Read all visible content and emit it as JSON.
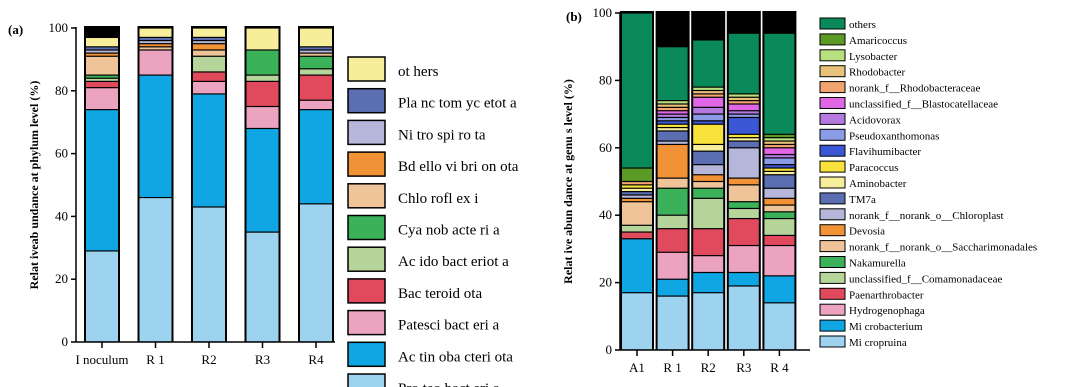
{
  "chart_data": [
    {
      "type": "bar",
      "stacked": true,
      "panel_label": "(a)",
      "ylabel": "Relat iveab undance at phylum level  (%)",
      "ylim": [
        0,
        100
      ],
      "yticks": [
        0,
        20,
        40,
        60,
        80,
        100
      ],
      "categories": [
        "I noculum",
        "R 1",
        "R2",
        "R3",
        "R4"
      ],
      "grid": false,
      "legend_position": "right",
      "series": [
        {
          "name": "Pro teo bact eri a",
          "color": "#9dd3ef",
          "values": [
            29,
            46,
            43,
            35,
            44
          ]
        },
        {
          "name": "Ac tin oba cteri ota",
          "color": "#0fa6e3",
          "values": [
            45,
            39,
            36,
            33,
            30
          ]
        },
        {
          "name": "Patesci bact eri a",
          "color": "#eba3c0",
          "values": [
            7,
            8,
            4,
            7,
            3
          ]
        },
        {
          "name": "Bac teroid ota",
          "color": "#e14a5c",
          "values": [
            2,
            0,
            3,
            8,
            8
          ]
        },
        {
          "name": "Ac ido bact eriot a",
          "color": "#b6d59b",
          "values": [
            1,
            0,
            5,
            2,
            2
          ]
        },
        {
          "name": "Cya nob acte ri a",
          "color": "#3bb15a",
          "values": [
            1,
            0,
            0,
            8,
            4
          ]
        },
        {
          "name": "Chlo rofl ex i",
          "color": "#efc498",
          "values": [
            6,
            1,
            2,
            0,
            1
          ]
        },
        {
          "name": "Bd ello vi bri on ota",
          "color": "#f29236",
          "values": [
            1,
            1,
            2,
            0,
            0
          ]
        },
        {
          "name": "Ni tro spi ro ta",
          "color": "#b5b6d9",
          "values": [
            1,
            1,
            1,
            0,
            1
          ]
        },
        {
          "name": "Pla nc tom yc etot a",
          "color": "#5b6eb2",
          "values": [
            1,
            1,
            1,
            0,
            1
          ]
        },
        {
          "name": "ot hers",
          "color": "#f7ee9c",
          "values": [
            3,
            3,
            3,
            7,
            6
          ]
        }
      ]
    },
    {
      "type": "bar",
      "stacked": true,
      "panel_label": "(b)",
      "ylabel": "Relat ive abun dance  at genu s level (%)",
      "ylim": [
        0,
        100
      ],
      "yticks": [
        0,
        20,
        40,
        60,
        80,
        100
      ],
      "categories": [
        "A1",
        "R 1",
        "R2",
        "R3",
        "R 4"
      ],
      "grid": false,
      "legend_position": "right",
      "series": [
        {
          "name": "Mi cropruina",
          "color": "#9dd3ef",
          "values": [
            17,
            16,
            17,
            19,
            14
          ]
        },
        {
          "name": "Mi crobacterium",
          "color": "#0fa6e3",
          "values": [
            16,
            5,
            6,
            4,
            8
          ]
        },
        {
          "name": "Hydrogenophaga",
          "color": "#eba3c0",
          "values": [
            0,
            8,
            5,
            8,
            9
          ]
        },
        {
          "name": "Paenarthrobacter",
          "color": "#e14a5c",
          "values": [
            2,
            7,
            8,
            8,
            3
          ]
        },
        {
          "name": "unclassified_f__Comamonadaceae",
          "color": "#b6d59b",
          "values": [
            2,
            4,
            9,
            3,
            5
          ]
        },
        {
          "name": "Nakamurella",
          "color": "#3bb15a",
          "values": [
            0,
            8,
            3,
            2,
            2
          ]
        },
        {
          "name": "norank_f__norank_o__Saccharimonadales",
          "color": "#efc498",
          "values": [
            7,
            3,
            2,
            5,
            2
          ]
        },
        {
          "name": "Devosia",
          "color": "#f29236",
          "values": [
            1,
            10,
            2,
            2,
            2
          ]
        },
        {
          "name": "norank_f__norank_o__Chloroplast",
          "color": "#b5b6d9",
          "values": [
            1,
            1,
            3,
            9,
            3
          ]
        },
        {
          "name": "TM7a",
          "color": "#5b6eb2",
          "values": [
            1,
            3,
            4,
            2,
            4
          ]
        },
        {
          "name": "Aminobacter",
          "color": "#f7ee9c",
          "values": [
            1,
            1,
            2,
            1,
            1
          ]
        },
        {
          "name": "Paracoccus",
          "color": "#f9e23c",
          "values": [
            1,
            1,
            6,
            1,
            1
          ]
        },
        {
          "name": "Flavihumibacter",
          "color": "#3c57d6",
          "values": [
            0,
            1,
            1,
            5,
            1
          ]
        },
        {
          "name": "Pseudoxanthomonas",
          "color": "#8a9ce6",
          "values": [
            0,
            1,
            2,
            1,
            2
          ]
        },
        {
          "name": "Acidovorax",
          "color": "#b47ae0",
          "values": [
            0,
            1,
            2,
            1,
            1
          ]
        },
        {
          "name": "unclassified_f__Blastocatellaceae",
          "color": "#e066e6",
          "values": [
            0,
            1,
            3,
            2,
            2
          ]
        },
        {
          "name": "norank_f__Rhodobacteraceae",
          "color": "#f0a46e",
          "values": [
            1,
            1,
            1,
            1,
            1
          ]
        },
        {
          "name": "Rhodobacter",
          "color": "#e8c27a",
          "values": [
            0,
            1,
            1,
            1,
            1
          ]
        },
        {
          "name": "Lysobacter",
          "color": "#b9e07e",
          "values": [
            0,
            1,
            1,
            1,
            1
          ]
        },
        {
          "name": "Amaricoccus",
          "color": "#5b9a24",
          "values": [
            4,
            0,
            0,
            0,
            1
          ]
        },
        {
          "name": "others",
          "color": "#0a8a5a",
          "values": [
            46,
            16,
            14,
            18,
            30
          ]
        }
      ]
    }
  ]
}
